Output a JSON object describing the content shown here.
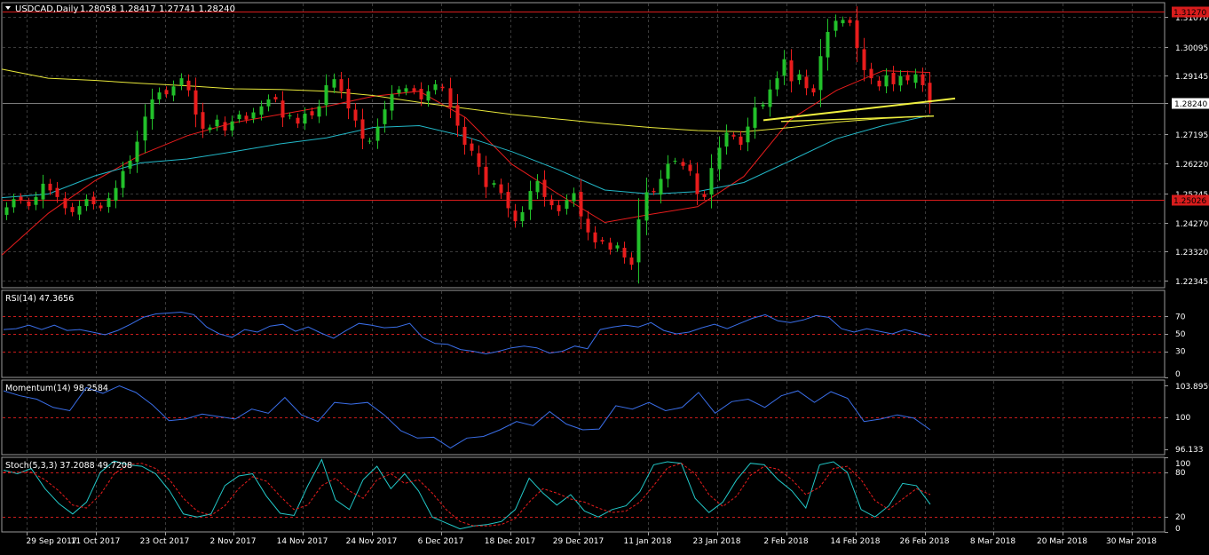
{
  "header": {
    "symbol_label": "USDCAD,Daily",
    "ohlc_text": "1.28058 1.28417 1.27741 1.28240"
  },
  "colors": {
    "background": "#000000",
    "grid": "#3a3a3a",
    "axis_text": "#ffffff",
    "bull": "#22c02a",
    "bear": "#e81c1c",
    "ma_fast": "#e81c1c",
    "ma_mid": "#22b8c8",
    "ma_slow": "#e8e83a",
    "level_line": "#d81c1c",
    "trendline": "#f0f040",
    "rsi": "#3a6ee8",
    "momentum": "#3a6ee8",
    "stoch_main": "#22c8c8",
    "stoch_signal": "#e81c1c",
    "ref_level": "#c81c1c"
  },
  "chart_data": [
    {
      "type": "candlestick",
      "panel": "price",
      "symbol": "USDCAD",
      "timeframe": "Daily",
      "yticks": [
        "1.31070",
        "1.30095",
        "1.29145",
        "1.28240",
        "1.27195",
        "1.26220",
        "1.25245",
        "1.24270",
        "1.23320",
        "1.22345"
      ],
      "ylim": [
        1.2212,
        1.3155
      ],
      "current_price_label": "1.28240",
      "horizontal_levels": [
        {
          "value": 1.3127,
          "label": "1.31270"
        },
        {
          "value": 1.2502,
          "label": "1.25026"
        }
      ],
      "xticks": [
        "29 Sep 2017",
        "11 Oct 2017",
        "23 Oct 2017",
        "2 Nov 2017",
        "14 Nov 2017",
        "24 Nov 2017",
        "6 Dec 2017",
        "18 Dec 2017",
        "29 Dec 2017",
        "11 Jan 2018",
        "23 Jan 2018",
        "2 Feb 2018",
        "14 Feb 2018",
        "26 Feb 2018",
        "8 Mar 2018",
        "20 Mar 2018",
        "30 Mar 2018"
      ],
      "close_series_approx": [
        1.2478,
        1.2505,
        1.2501,
        1.2482,
        1.2512,
        1.2556,
        1.2534,
        1.2512,
        1.2475,
        1.2462,
        1.2482,
        1.2505,
        1.2488,
        1.2475,
        1.2508,
        1.2542,
        1.2598,
        1.2632,
        1.2695,
        1.2778,
        1.2835,
        1.2858,
        1.2852,
        1.2878,
        1.2905,
        1.2865,
        1.2785,
        1.2738,
        1.2742,
        1.2768,
        1.2732,
        1.2762,
        1.2785,
        1.2768,
        1.2792,
        1.2812,
        1.2835,
        1.2835,
        1.2775,
        1.2782,
        1.2755,
        1.2788,
        1.2782,
        1.2812,
        1.2882,
        1.2902,
        1.2862,
        1.2805,
        1.2765,
        1.2705,
        1.2698,
        1.2745,
        1.2802,
        1.2852,
        1.2868,
        1.2872,
        1.2862,
        1.2835,
        1.2862,
        1.2885,
        1.2872,
        1.2808,
        1.2748,
        1.2685,
        1.2665,
        1.2612,
        1.2545,
        1.2558,
        1.2525,
        1.2475,
        1.2432,
        1.2462,
        1.2532,
        1.2565,
        1.2512,
        1.2485,
        1.2465,
        1.2502,
        1.2525,
        1.2448,
        1.2395,
        1.2362,
        1.2365,
        1.2338,
        1.2352,
        1.2312,
        1.2288,
        1.2438,
        1.2528,
        1.2528,
        1.2572,
        1.2622,
        1.2632,
        1.2615,
        1.2598,
        1.2522,
        1.2512,
        1.2608,
        1.2675,
        1.2725,
        1.2712,
        1.2685,
        1.2745,
        1.2808,
        1.2818,
        1.2868,
        1.2905,
        1.2968,
        1.2895,
        1.2918,
        1.2872,
        1.2858,
        1.2978,
        1.3058,
        1.3095,
        1.3098,
        1.3088,
        1.3005,
        1.2932,
        1.2905,
        1.2878,
        1.2915,
        1.2885,
        1.2912,
        1.2898,
        1.2918,
        1.2882,
        1.2824
      ],
      "moving_averages": [
        {
          "name": "MA fast",
          "color_key": "ma_fast",
          "values_approx": [
            1.232,
            1.2458,
            1.2565,
            1.2652,
            1.2715,
            1.2758,
            1.2785,
            1.2812,
            1.2845,
            1.2862,
            1.2775,
            1.262,
            1.2522,
            1.2428,
            1.2455,
            1.248,
            1.258,
            1.2768,
            1.2865,
            1.293,
            1.2924
          ]
        },
        {
          "name": "MA mid",
          "color_key": "ma_mid",
          "values_approx": [
            1.251,
            1.2522,
            1.2582,
            1.2625,
            1.2638,
            1.2662,
            1.2688,
            1.2708,
            1.2742,
            1.2748,
            1.2712,
            1.2662,
            1.2602,
            1.2535,
            1.2522,
            1.253,
            1.256,
            1.2632,
            1.2705,
            1.2748,
            1.2782
          ]
        },
        {
          "name": "MA slow",
          "color_key": "ma_slow",
          "values_approx": [
            1.2935,
            1.2905,
            1.2898,
            1.2888,
            1.288,
            1.287,
            1.2868,
            1.2862,
            1.2848,
            1.2825,
            1.2805,
            1.2785,
            1.277,
            1.2755,
            1.2742,
            1.2732,
            1.2728,
            1.2742,
            1.276,
            1.2772,
            1.278
          ]
        }
      ],
      "trendlines": [
        {
          "from_value": 1.2766,
          "to_value": 1.2838
        },
        {
          "from_value": 1.2762,
          "to_value": 1.278
        }
      ]
    },
    {
      "type": "line",
      "panel": "rsi",
      "label": "RSI(14) 47.3656",
      "yticks": [
        "70",
        "50",
        "30",
        "0"
      ],
      "ylim": [
        0,
        100
      ],
      "reference_levels": [
        70,
        50,
        30
      ],
      "values_approx": [
        55,
        56,
        60,
        55,
        60,
        54,
        55,
        52,
        49,
        54,
        61,
        69,
        73,
        74,
        75,
        72,
        58,
        50,
        46,
        55,
        52,
        59,
        61,
        53,
        58,
        51,
        45,
        54,
        62,
        60,
        57,
        58,
        62,
        46,
        39,
        38,
        32,
        30,
        27,
        30,
        34,
        36,
        34,
        28,
        30,
        36,
        33,
        55,
        58,
        60,
        58,
        63,
        54,
        50,
        52,
        57,
        61,
        56,
        62,
        68,
        72,
        65,
        63,
        66,
        71,
        69,
        56,
        52,
        56,
        53,
        50,
        55,
        51,
        47
      ]
    },
    {
      "type": "line",
      "panel": "momentum",
      "label": "Momentum(14) 98.2584",
      "yticks": [
        "103.8959",
        "100",
        "96.133"
      ],
      "ylim": [
        95.5,
        104.5
      ],
      "reference_levels": [
        100
      ],
      "values_approx": [
        103.2,
        102.6,
        102.2,
        101.2,
        100.8,
        103.6,
        102.9,
        103.8,
        103.0,
        101.5,
        99.6,
        99.8,
        100.4,
        100.1,
        99.8,
        101.0,
        100.5,
        102.4,
        100.3,
        99.5,
        101.8,
        101.6,
        101.8,
        100.3,
        98.4,
        97.5,
        97.6,
        96.3,
        97.5,
        97.7,
        98.5,
        99.5,
        99.0,
        100.7,
        99.2,
        98.5,
        98.6,
        101.4,
        101.0,
        101.8,
        100.8,
        101.2,
        103.0,
        100.5,
        101.9,
        102.2,
        101.2,
        102.6,
        103.2,
        101.8,
        103.1,
        102.3,
        99.5,
        99.8,
        100.3,
        99.9,
        98.5
      ]
    },
    {
      "type": "line",
      "panel": "stochastic",
      "label": "Stoch(5,3,3) 37.2088 49.7208",
      "yticks": [
        "100",
        "80",
        "20",
        "0"
      ],
      "ylim": [
        0,
        100
      ],
      "reference_levels": [
        80,
        20
      ],
      "series": [
        {
          "key": "main",
          "values_approx": [
            83,
            78,
            85,
            58,
            38,
            24,
            40,
            80,
            95,
            90,
            88,
            78,
            55,
            24,
            20,
            24,
            62,
            75,
            78,
            48,
            25,
            22,
            62,
            97,
            43,
            30,
            70,
            88,
            58,
            78,
            55,
            20,
            12,
            4,
            8,
            10,
            14,
            30,
            72,
            52,
            36,
            50,
            28,
            20,
            30,
            35,
            54,
            90,
            94,
            92,
            45,
            26,
            40,
            70,
            92,
            90,
            70,
            55,
            32,
            90,
            94,
            80,
            30,
            20,
            35,
            65,
            62,
            37
          ]
        },
        {
          "key": "signal",
          "values_approx": [
            80,
            80,
            80,
            70,
            55,
            36,
            32,
            50,
            78,
            90,
            92,
            85,
            70,
            45,
            28,
            22,
            35,
            58,
            74,
            68,
            48,
            30,
            36,
            62,
            72,
            55,
            45,
            70,
            78,
            65,
            70,
            52,
            30,
            14,
            8,
            8,
            10,
            18,
            40,
            58,
            52,
            44,
            40,
            32,
            26,
            28,
            40,
            62,
            86,
            92,
            78,
            50,
            34,
            48,
            76,
            88,
            84,
            70,
            50,
            60,
            85,
            88,
            70,
            42,
            30,
            44,
            58,
            50
          ]
        }
      ]
    }
  ]
}
